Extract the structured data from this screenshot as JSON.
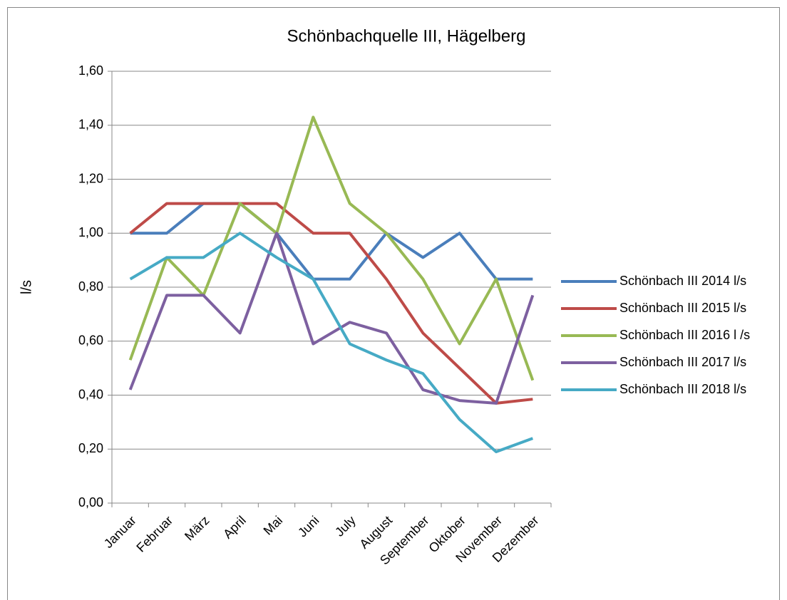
{
  "chart_data": {
    "type": "line",
    "title": "Schönbachquelle III, Hägelberg",
    "y_label": "l/s",
    "categories": [
      "Januar",
      "Februar",
      "März",
      "April",
      "Mai",
      "Juni",
      "July",
      "August",
      "September",
      "Oktober",
      "November",
      "Dezember"
    ],
    "series": [
      {
        "name": "Schönbach III 2014 l/s",
        "color": "#4a7ebb",
        "values": [
          1.0,
          1.0,
          1.11,
          1.11,
          1.0,
          0.83,
          0.83,
          1.0,
          0.91,
          1.0,
          0.83,
          0.83
        ]
      },
      {
        "name": "Schönbach III 2015 l/s",
        "color": "#be4b48",
        "values": [
          1.0,
          1.11,
          1.11,
          1.11,
          1.11,
          1.0,
          1.0,
          0.83,
          0.63,
          0.5,
          0.37,
          0.385
        ]
      },
      {
        "name": "Schönbach III 2016 l /s",
        "color": "#98b954",
        "values": [
          0.53,
          0.91,
          0.77,
          1.11,
          1.0,
          1.43,
          1.11,
          1.0,
          0.83,
          0.59,
          0.83,
          0.455
        ]
      },
      {
        "name": "Schönbach III 2017 l/s",
        "color": "#7d60a0",
        "values": [
          0.42,
          0.77,
          0.77,
          0.63,
          1.0,
          0.59,
          0.67,
          0.63,
          0.42,
          0.38,
          0.37,
          0.77
        ]
      },
      {
        "name": "Schönbach III 2018 l/s",
        "color": "#46aac5",
        "values": [
          0.83,
          0.91,
          0.91,
          1.0,
          0.91,
          0.83,
          0.59,
          0.53,
          0.48,
          0.31,
          0.19,
          0.24
        ]
      }
    ],
    "ylim": [
      0,
      1.6
    ],
    "yticks": [
      {
        "value": 0,
        "label": "0,00"
      },
      {
        "value": 0.2,
        "label": "0,20"
      },
      {
        "value": 0.4,
        "label": "0,40"
      },
      {
        "value": 0.6,
        "label": "0,60"
      },
      {
        "value": 0.8,
        "label": "0,80"
      },
      {
        "value": 1.0,
        "label": "1,00"
      },
      {
        "value": 1.2,
        "label": "1,20"
      },
      {
        "value": 1.4,
        "label": "1,40"
      },
      {
        "value": 1.6,
        "label": "1,60"
      }
    ],
    "grid": true,
    "legend": "right"
  }
}
